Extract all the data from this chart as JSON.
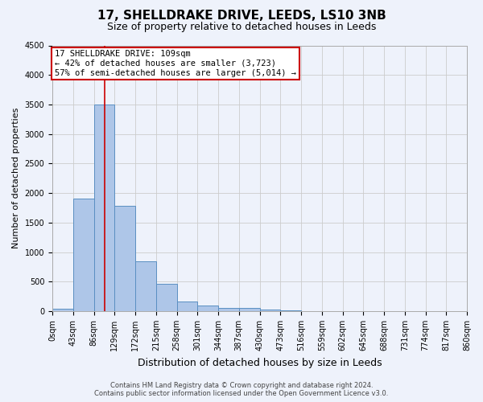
{
  "title1": "17, SHELLDRAKE DRIVE, LEEDS, LS10 3NB",
  "title2": "Size of property relative to detached houses in Leeds",
  "xlabel": "Distribution of detached houses by size in Leeds",
  "ylabel": "Number of detached properties",
  "footnote1": "Contains HM Land Registry data © Crown copyright and database right 2024.",
  "footnote2": "Contains public sector information licensed under the Open Government Licence v3.0.",
  "bar_values": [
    40,
    1900,
    3500,
    1780,
    840,
    460,
    160,
    100,
    60,
    50,
    30,
    20,
    0,
    0,
    0,
    0,
    0,
    0,
    0,
    0
  ],
  "bin_labels": [
    "0sqm",
    "43sqm",
    "86sqm",
    "129sqm",
    "172sqm",
    "215sqm",
    "258sqm",
    "301sqm",
    "344sqm",
    "387sqm",
    "430sqm",
    "473sqm",
    "516sqm",
    "559sqm",
    "602sqm",
    "645sqm",
    "688sqm",
    "731sqm",
    "774sqm",
    "817sqm",
    "860sqm"
  ],
  "bar_color": "#aec6e8",
  "bar_edge_color": "#5a8fc2",
  "vline_x": 109,
  "vline_color": "#cc0000",
  "annotation_line1": "17 SHELLDRAKE DRIVE: 109sqm",
  "annotation_line2": "← 42% of detached houses are smaller (3,723)",
  "annotation_line3": "57% of semi-detached houses are larger (5,014) →",
  "annotation_box_color": "#ffffff",
  "annotation_box_edge": "#cc0000",
  "ylim": [
    0,
    4500
  ],
  "yticks": [
    0,
    500,
    1000,
    1500,
    2000,
    2500,
    3000,
    3500,
    4000,
    4500
  ],
  "grid_color": "#cccccc",
  "bg_color": "#eef2fb",
  "title1_fontsize": 11,
  "title2_fontsize": 9,
  "xlabel_fontsize": 9,
  "ylabel_fontsize": 8,
  "tick_fontsize": 7,
  "annotation_fontsize": 7.5,
  "footnote_fontsize": 6
}
